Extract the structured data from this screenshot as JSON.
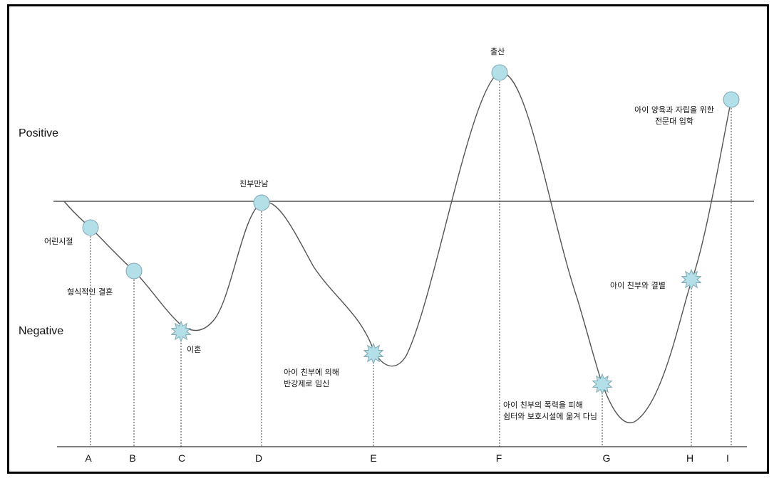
{
  "zones": {
    "positive": "Positive",
    "negative": "Negative"
  },
  "colors": {
    "circle_fill": "#b3e0e8",
    "circle_stroke": "#7fa7b4",
    "line": "#555555",
    "frame": "#000000"
  },
  "timeline": [
    "A",
    "B",
    "C",
    "D",
    "E",
    "F",
    "G",
    "H",
    "I"
  ],
  "events": [
    {
      "point": "A",
      "kind": "circle",
      "label": [
        "어린시절"
      ]
    },
    {
      "point": "B",
      "kind": "circle",
      "label": [
        "형식적인 결혼"
      ]
    },
    {
      "point": "C",
      "kind": "burst",
      "label": [
        "이혼"
      ]
    },
    {
      "point": "D",
      "kind": "circle",
      "label": [
        "친부만남"
      ]
    },
    {
      "point": "E",
      "kind": "burst",
      "label": [
        "아이 친부에 의해",
        "반강제로 임신"
      ]
    },
    {
      "point": "F",
      "kind": "circle",
      "label": [
        "출산"
      ]
    },
    {
      "point": "G",
      "kind": "burst",
      "label": [
        "아이 친부의 폭력을 피해",
        "쉼터와 보호시설에 옮겨 다님"
      ]
    },
    {
      "point": "H",
      "kind": "burst",
      "label": [
        "아이 친부와 결별"
      ]
    },
    {
      "point": "I",
      "kind": "circle",
      "label": [
        "아이 양육과 자립을 위한",
        "전문대 입학"
      ]
    }
  ]
}
